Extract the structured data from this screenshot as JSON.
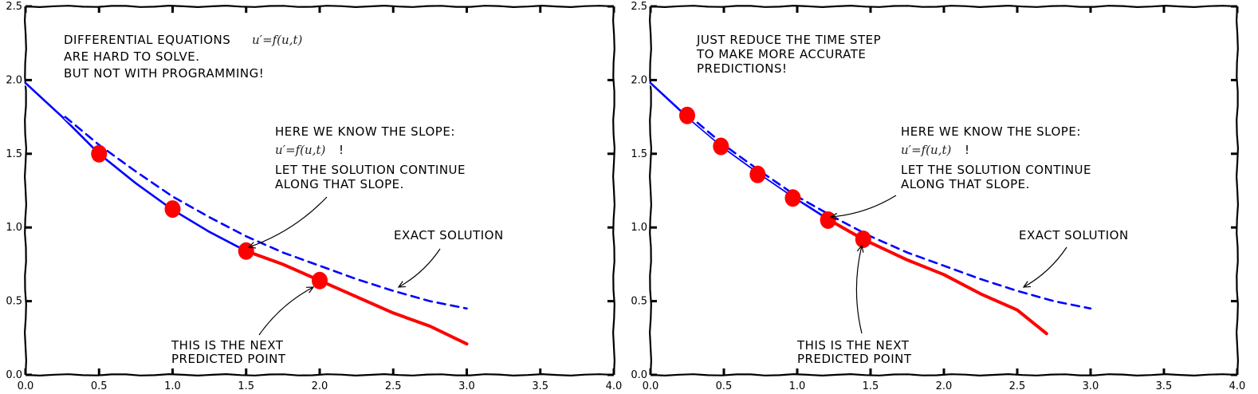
{
  "colors": {
    "euler_blue": "#0000ff",
    "predicted_red": "#ff0000",
    "exact_blue": "#0000ff",
    "marker_red": "#ff0000",
    "axes": "#000000"
  },
  "chart_data": [
    {
      "type": "line",
      "style": "xkcd",
      "xlim": [
        0,
        4
      ],
      "ylim": [
        0,
        2.5
      ],
      "xticks": [
        "0.0",
        "0.5",
        "1.0",
        "1.5",
        "2.0",
        "2.5",
        "3.0",
        "3.5",
        "4.0"
      ],
      "yticks": [
        "0.0",
        "0.5",
        "1.0",
        "1.5",
        "2.0",
        "2.5"
      ],
      "grid": false,
      "series": [
        {
          "kind": "solid-blue",
          "x": [
            0,
            0.25,
            0.5,
            0.75,
            1.0,
            1.25,
            1.5
          ],
          "y": [
            1.98,
            1.75,
            1.5,
            1.3,
            1.12,
            0.97,
            0.84
          ]
        },
        {
          "kind": "solid-red",
          "x": [
            1.5,
            1.75,
            2.0,
            2.25,
            2.5,
            2.75,
            3.0
          ],
          "y": [
            0.84,
            0.75,
            0.64,
            0.53,
            0.42,
            0.33,
            0.21
          ]
        },
        {
          "kind": "dashed-blue",
          "x": [
            0.27,
            0.5,
            0.75,
            1.0,
            1.25,
            1.5,
            1.75,
            2.0,
            2.25,
            2.5,
            2.75,
            3.0
          ],
          "y": [
            1.75,
            1.56,
            1.38,
            1.21,
            1.07,
            0.94,
            0.83,
            0.74,
            0.65,
            0.57,
            0.5,
            0.45
          ]
        },
        {
          "kind": "markers-red",
          "x": [
            0.5,
            1.0,
            1.5,
            2.0
          ],
          "y": [
            1.5,
            1.125,
            0.84,
            0.64
          ]
        }
      ],
      "annotations": {
        "intro": [
          "DIFFERENTIAL EQUATIONS",
          "ARE HARD TO SOLVE.",
          "BUT NOT WITH PROGRAMMING!"
        ],
        "intro_math": "u′=f(u,t)",
        "slope": [
          "HERE WE KNOW THE SLOPE:",
          "!",
          "LET THE SOLUTION CONTINUE",
          "ALONG THAT SLOPE."
        ],
        "slope_math": "u′=f(u,t)",
        "exact": "EXACT SOLUTION",
        "next": [
          "THIS IS THE NEXT",
          "PREDICTED POINT"
        ]
      }
    },
    {
      "type": "line",
      "style": "xkcd",
      "xlim": [
        0,
        4
      ],
      "ylim": [
        0,
        2.5
      ],
      "xticks": [
        "0.0",
        "0.5",
        "1.0",
        "1.5",
        "2.0",
        "2.5",
        "3.0",
        "3.5",
        "4.0"
      ],
      "yticks": [
        "0.0",
        "0.5",
        "1.0",
        "1.5",
        "2.0",
        "2.5"
      ],
      "grid": false,
      "series": [
        {
          "kind": "solid-blue",
          "x": [
            0,
            0.25,
            0.5,
            0.75,
            1.0,
            1.22
          ],
          "y": [
            1.98,
            1.75,
            1.54,
            1.36,
            1.19,
            1.05
          ]
        },
        {
          "kind": "solid-red",
          "x": [
            1.22,
            1.45,
            1.75,
            2.0,
            2.25,
            2.5,
            2.7
          ],
          "y": [
            1.05,
            0.92,
            0.78,
            0.68,
            0.55,
            0.44,
            0.28
          ]
        },
        {
          "kind": "dashed-blue",
          "x": [
            0.25,
            0.5,
            0.75,
            1.0,
            1.25,
            1.5,
            1.75,
            2.0,
            2.25,
            2.5,
            2.75,
            3.0
          ],
          "y": [
            1.77,
            1.56,
            1.38,
            1.21,
            1.07,
            0.94,
            0.83,
            0.74,
            0.65,
            0.57,
            0.5,
            0.45
          ]
        },
        {
          "kind": "markers-red",
          "x": [
            0.25,
            0.48,
            0.73,
            0.97,
            1.21,
            1.45
          ],
          "y": [
            1.76,
            1.55,
            1.36,
            1.2,
            1.05,
            0.92
          ]
        }
      ],
      "annotations": {
        "intro": [
          "JUST REDUCE THE TIME STEP",
          "TO MAKE MORE ACCURATE",
          "PREDICTIONS!"
        ],
        "slope": [
          "HERE WE KNOW THE SLOPE:",
          "!",
          "LET THE SOLUTION CONTINUE",
          "ALONG THAT SLOPE."
        ],
        "slope_math": "u′=f(u,t)",
        "exact": "EXACT SOLUTION",
        "next": [
          "THIS IS THE NEXT",
          "PREDICTED POINT"
        ]
      }
    }
  ]
}
